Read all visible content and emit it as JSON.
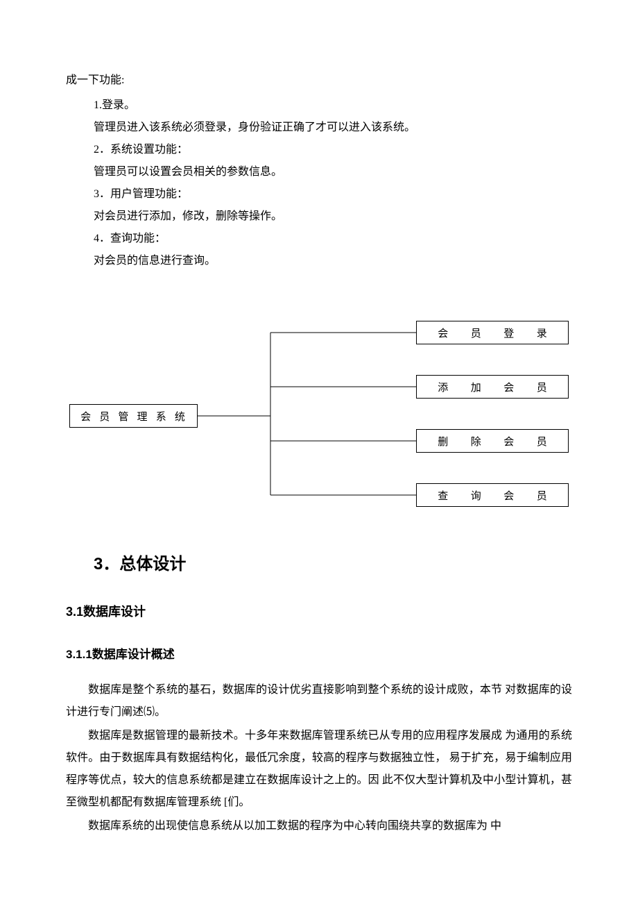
{
  "intro": "成一下功能:",
  "items": [
    {
      "num": "1.登录。",
      "desc": "管理员进入该系统必须登录，身份验证正确了才可以进入该系统。"
    },
    {
      "num": "2．系统设置功能：",
      "desc": "管理员可以设置会员相关的参数信息。"
    },
    {
      "num": "3．用户管理功能：",
      "desc": "对会员进行添加，修改，删除等操作。"
    },
    {
      "num": "4．查询功能：",
      "desc": "对会员的信息进行查询。"
    }
  ],
  "diagram": {
    "root": "会员管理系统",
    "children": [
      "会员登录",
      "添加会员",
      "删除会员",
      "查询会员"
    ],
    "line_color": "#000000",
    "box_border_color": "#000000",
    "background": "#ffffff"
  },
  "heading_main": "3．总体设计",
  "heading_sub": "3.1数据库设计",
  "heading_subsub": "3.1.1数据库设计概述",
  "paragraphs": [
    "数据库是整个系统的基石，数据库的设计优劣直接影响到整个系统的设计成败，本节 对数据库的设计进行专门阐述⑸。",
    "数据库是数据管理的最新技术。十多年来数据库管理系统已从专用的应用程序发展成 为通用的系统软件。由于数据库具有数据结构化，最低冗余度，较高的程序与数据独立性，  易于扩充，易于编制应用程序等优点，较大的信息系统都是建立在数据库设计之上的。因 此不仅大型计算机及中小型计算机，甚至微型机都配有数据库管理系统 [们。",
    "数据库系统的出现使信息系统从以加工数据的程序为中心转向围绕共享的数据库为   中"
  ],
  "fonts": {
    "body_family": "SimSun",
    "heading_family": "SimHei",
    "body_size_pt": 12,
    "heading_main_size_pt": 18,
    "heading_sub_size_pt": 14
  },
  "colors": {
    "text": "#000000",
    "background": "#ffffff"
  }
}
